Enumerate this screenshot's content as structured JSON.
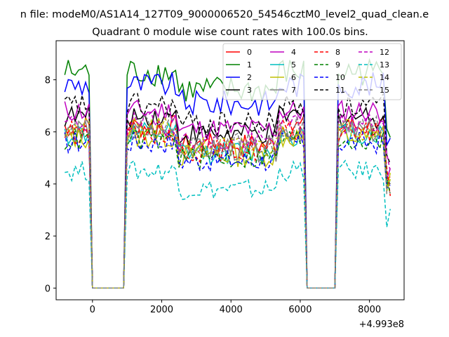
{
  "figure": {
    "suptitle": "n file: modeM0/AS1A14_127T09_9000006520_54546cztM0_level2_quad_clean.e",
    "offset_label": "+4.993e8"
  },
  "chart_data": {
    "type": "line",
    "title": "Quadrant 0 module wise count rates with 100.0s bins.",
    "xlabel": "",
    "ylabel": "",
    "x_offset": 499300000,
    "xlim": [
      -1050,
      9000
    ],
    "ylim": [
      -0.45,
      9.5
    ],
    "x_ticks": [
      0,
      2000,
      4000,
      6000,
      8000
    ],
    "y_ticks": [
      0,
      2,
      4,
      6,
      8
    ],
    "x_tick_labels": [
      "0",
      "2000",
      "4000",
      "6000",
      "8000"
    ],
    "y_tick_labels": [
      "0",
      "2",
      "4",
      "6",
      "8"
    ],
    "grid": false,
    "legend_position": "top-right",
    "legend_columns": 4,
    "segments": {
      "gaps": [
        [
          -50,
          950
        ],
        [
          6150,
          7050
        ]
      ],
      "gap_value": 0,
      "x_start": -800,
      "x_end": 8600,
      "step": 100
    },
    "series": [
      {
        "name": "0",
        "color": "#ff0000",
        "dash": "solid",
        "level": 6.2,
        "noise": 0.45
      },
      {
        "name": "1",
        "color": "#008000",
        "dash": "solid",
        "level": 8.3,
        "noise": 0.55
      },
      {
        "name": "2",
        "color": "#0000ff",
        "dash": "solid",
        "level": 7.8,
        "noise": 0.5
      },
      {
        "name": "3",
        "color": "#000000",
        "dash": "solid",
        "level": 6.6,
        "noise": 0.45
      },
      {
        "name": "4",
        "color": "#bf00bf",
        "dash": "solid",
        "level": 6.8,
        "noise": 0.45
      },
      {
        "name": "5",
        "color": "#00bfbf",
        "dash": "solid",
        "level": 5.9,
        "noise": 0.45
      },
      {
        "name": "6",
        "color": "#bfbf00",
        "dash": "solid",
        "level": 5.8,
        "noise": 0.45
      },
      {
        "name": "7",
        "color": "#808080",
        "dash": "solid",
        "level": 6.0,
        "noise": 0.45
      },
      {
        "name": "8",
        "color": "#ff0000",
        "dash": "dashed",
        "level": 6.0,
        "noise": 0.45
      },
      {
        "name": "9",
        "color": "#008000",
        "dash": "dashed",
        "level": 5.7,
        "noise": 0.45
      },
      {
        "name": "10",
        "color": "#0000ff",
        "dash": "dashed",
        "level": 5.6,
        "noise": 0.45
      },
      {
        "name": "11",
        "color": "#000000",
        "dash": "dashed",
        "level": 7.0,
        "noise": 0.5
      },
      {
        "name": "12",
        "color": "#bf00bf",
        "dash": "dashed",
        "level": 6.3,
        "noise": 0.45
      },
      {
        "name": "13",
        "color": "#00bfbf",
        "dash": "dashed",
        "level": 4.5,
        "noise": 0.4
      },
      {
        "name": "14",
        "color": "#bfbf00",
        "dash": "dashed",
        "level": 6.1,
        "noise": 0.45
      },
      {
        "name": "15",
        "color": "#808080",
        "dash": "dashed",
        "level": 6.2,
        "noise": 0.45
      }
    ]
  }
}
